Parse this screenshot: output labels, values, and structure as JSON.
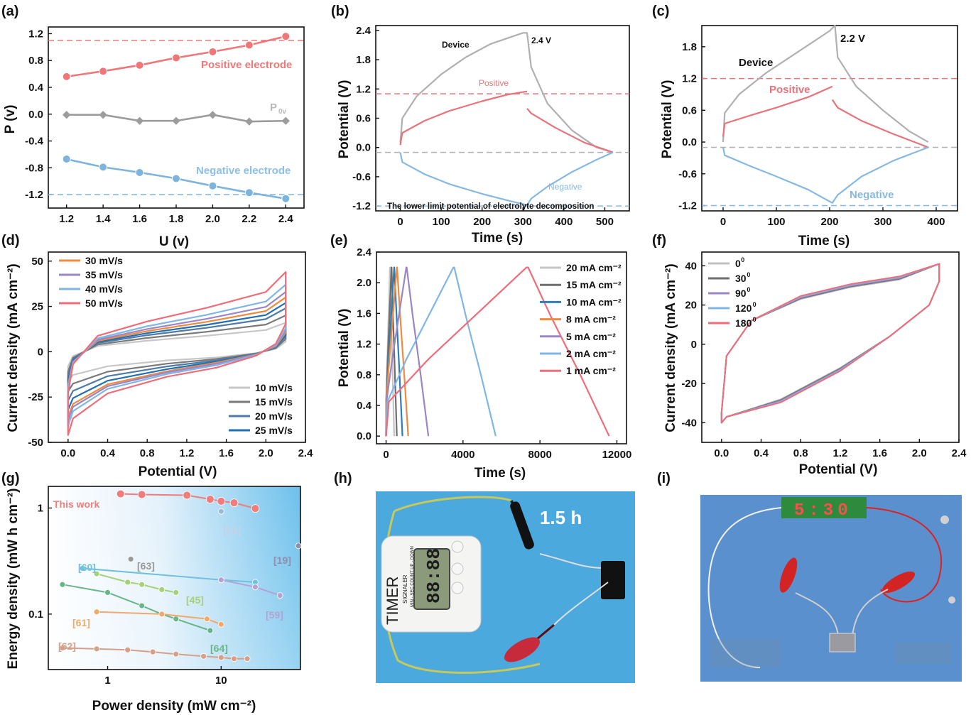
{
  "chart_data": [
    {
      "panel": "(a)",
      "type": "line",
      "xlabel": "U (v)",
      "ylabel": "P (v)",
      "xlim": [
        1.1,
        2.5
      ],
      "ylim": [
        -1.4,
        1.3
      ],
      "xticks": [
        "1.2",
        "1.4",
        "1.6",
        "1.8",
        "2.0",
        "2.2",
        "2.4"
      ],
      "yticks": [
        "-1.2",
        "-0.8",
        "-0.4",
        "0.0",
        "0.4",
        "0.8",
        "1.2"
      ],
      "x": [
        1.2,
        1.4,
        1.6,
        1.8,
        2.0,
        2.2,
        2.4
      ],
      "series": [
        {
          "name": "Positive electrode",
          "color": "#ef7777",
          "values": [
            0.56,
            0.64,
            0.73,
            0.84,
            0.93,
            1.03,
            1.16
          ]
        },
        {
          "name": "P0v",
          "color": "#9c9c9c",
          "values": [
            -0.01,
            -0.01,
            -0.1,
            -0.1,
            -0.01,
            -0.11,
            -0.1
          ]
        },
        {
          "name": "Negative electrode",
          "color": "#7cb4de",
          "values": [
            -0.67,
            -0.79,
            -0.87,
            -0.96,
            -1.07,
            -1.17,
            -1.26
          ]
        }
      ],
      "hlines": [
        {
          "y": 1.1,
          "color": "#ef7777"
        },
        {
          "y": -1.2,
          "color": "#7cb4de"
        }
      ],
      "annotations": [
        "Positive electrode",
        "P",
        "0v",
        "Negative electrode"
      ]
    },
    {
      "panel": "(b)",
      "type": "line",
      "xlabel": "Time (s)",
      "ylabel": "Potential (V)",
      "xlim": [
        -60,
        560
      ],
      "ylim": [
        -1.3,
        2.5
      ],
      "xticks": [
        "0",
        "100",
        "200",
        "300",
        "400",
        "500"
      ],
      "yticks": [
        "-1.2",
        "-0.6",
        "0.0",
        "0.6",
        "1.2",
        "1.8",
        "2.4"
      ],
      "series": [
        {
          "name": "Device",
          "color": "#b0b0b0",
          "x": [
            0,
            5,
            40,
            100,
            160,
            220,
            300,
            310,
            320,
            360,
            420,
            480,
            520
          ],
          "values": [
            0.1,
            0.6,
            1.05,
            1.5,
            1.85,
            2.12,
            2.35,
            2.35,
            1.65,
            0.9,
            0.35,
            0.0,
            -0.1
          ]
        },
        {
          "name": "Positive",
          "color": "#e8737a",
          "x": [
            0,
            5,
            60,
            120,
            200,
            260,
            310,
            310,
            320,
            380,
            450,
            520
          ],
          "values": [
            0.05,
            0.3,
            0.55,
            0.75,
            0.95,
            1.08,
            1.15,
            0.8,
            0.7,
            0.4,
            0.1,
            -0.1
          ]
        },
        {
          "name": "Negative",
          "color": "#86b9e2",
          "x": [
            0,
            5,
            60,
            120,
            200,
            260,
            310,
            320,
            360,
            420,
            480,
            520
          ],
          "values": [
            -0.1,
            -0.3,
            -0.55,
            -0.75,
            -0.95,
            -1.08,
            -1.18,
            -1.05,
            -0.8,
            -0.5,
            -0.25,
            -0.1
          ]
        }
      ],
      "hlines": [
        {
          "y": 1.1,
          "color": "#e8737a"
        },
        {
          "y": -0.1,
          "color": "#b0b0b0"
        },
        {
          "y": -1.2,
          "color": "#86b9e2"
        }
      ],
      "annotations": [
        "Device",
        "2.4 V",
        "Positive",
        "Negative",
        "The lower limit potential of electrolyte decomposition"
      ]
    },
    {
      "panel": "(c)",
      "type": "line",
      "xlabel": "Time (s)",
      "ylabel": "Potential (V)",
      "xlim": [
        -40,
        440
      ],
      "ylim": [
        -1.3,
        2.2
      ],
      "xticks": [
        "0",
        "100",
        "200",
        "300",
        "400"
      ],
      "yticks": [
        "-1.2",
        "-0.6",
        "0.0",
        "0.6",
        "1.2",
        "1.8"
      ],
      "series": [
        {
          "name": "Device",
          "color": "#b0b0b0",
          "x": [
            0,
            3,
            30,
            80,
            140,
            200,
            210,
            215,
            250,
            300,
            350,
            385
          ],
          "values": [
            0.0,
            0.55,
            0.9,
            1.3,
            1.7,
            2.1,
            2.2,
            1.6,
            1.05,
            0.6,
            0.2,
            0.0
          ]
        },
        {
          "name": "Positive",
          "color": "#e8737a",
          "x": [
            0,
            3,
            50,
            100,
            160,
            205,
            205,
            215,
            260,
            320,
            385
          ],
          "values": [
            0.1,
            0.35,
            0.5,
            0.65,
            0.85,
            1.05,
            0.8,
            0.65,
            0.4,
            0.15,
            -0.1
          ]
        },
        {
          "name": "Negative",
          "color": "#86b9e2",
          "x": [
            0,
            3,
            50,
            100,
            160,
            205,
            215,
            260,
            320,
            385
          ],
          "values": [
            -0.1,
            -0.25,
            -0.45,
            -0.65,
            -0.9,
            -1.15,
            -1.0,
            -0.65,
            -0.35,
            -0.1
          ]
        }
      ],
      "hlines": [
        {
          "y": 1.2,
          "color": "#e8737a"
        },
        {
          "y": -0.1,
          "color": "#b0b0b0"
        },
        {
          "y": -1.2,
          "color": "#86b9e2"
        }
      ],
      "annotations": [
        "Device",
        "2.2 V",
        "Positive",
        "Negative"
      ]
    },
    {
      "panel": "(d)",
      "type": "line",
      "xlabel": "Potential (V)",
      "ylabel": "Current density (mA cm⁻²)",
      "xlim": [
        -0.2,
        2.4
      ],
      "ylim": [
        -50,
        55
      ],
      "xticks": [
        "0.0",
        "0.4",
        "0.8",
        "1.2",
        "1.6",
        "2.0",
        "2.4"
      ],
      "yticks": [
        "-50",
        "-25",
        "0",
        "25",
        "50"
      ],
      "series": [
        {
          "name": "10 mV/s",
          "color": "#c7c7c7",
          "upper_end": 16,
          "lower_end": -16
        },
        {
          "name": "15 mV/s",
          "color": "#7a7a7a",
          "upper_end": 20,
          "lower_end": -22
        },
        {
          "name": "20 mV/s",
          "color": "#4d7aa6",
          "upper_end": 24,
          "lower_end": -27
        },
        {
          "name": "25 mV/s",
          "color": "#1f6fb2",
          "upper_end": 27,
          "lower_end": -32
        },
        {
          "name": "30 mV/s",
          "color": "#f08a3c",
          "upper_end": 30,
          "lower_end": -36
        },
        {
          "name": "35 mV/s",
          "color": "#9a86c4",
          "upper_end": 33,
          "lower_end": -38
        },
        {
          "name": "40 mV/s",
          "color": "#80b6e6",
          "upper_end": 37,
          "lower_end": -41
        },
        {
          "name": "50 mV/s",
          "color": "#f06c78",
          "upper_end": 44,
          "lower_end": -46
        }
      ],
      "legend_top_left": [
        "30 mV/s",
        "35 mV/s",
        "40 mV/s",
        "50 mV/s"
      ],
      "legend_bottom_right": [
        "10 mV/s",
        "15 mV/s",
        "20 mV/s",
        "25 mV/s"
      ]
    },
    {
      "panel": "(e)",
      "type": "line",
      "xlabel": "Time (s)",
      "ylabel": "Potential (V)",
      "xlim": [
        -500,
        12500
      ],
      "ylim": [
        -0.1,
        2.4
      ],
      "xticks": [
        "0",
        "4000",
        "8000",
        "12000"
      ],
      "yticks": [
        "0.0",
        "0.4",
        "0.8",
        "1.2",
        "1.6",
        "2.0",
        "2.4"
      ],
      "series": [
        {
          "name": "20 mA cm⁻²",
          "color": "#c5c5c5",
          "charge_end": 200,
          "discharge_end": 420
        },
        {
          "name": "15 mA cm⁻²",
          "color": "#6e6e6e",
          "charge_end": 280,
          "discharge_end": 560
        },
        {
          "name": "10 mA cm⁻²",
          "color": "#2f7db8",
          "charge_end": 420,
          "discharge_end": 850
        },
        {
          "name": "8 mA cm⁻²",
          "color": "#f08a3c",
          "charge_end": 560,
          "discharge_end": 1150
        },
        {
          "name": "5 mA cm⁻²",
          "color": "#9a86c4",
          "charge_end": 1050,
          "discharge_end": 2200
        },
        {
          "name": "2 mA cm⁻²",
          "color": "#80b6e6",
          "charge_end": 3500,
          "discharge_end": 5700
        },
        {
          "name": "1 mA cm⁻²",
          "color": "#f06c78",
          "charge_end": 7300,
          "discharge_end": 11600
        }
      ],
      "vmax": 2.2
    },
    {
      "panel": "(f)",
      "type": "line",
      "xlabel": "Potential (V)",
      "ylabel": "Current density (mA cm⁻²)",
      "xlim": [
        -0.2,
        2.4
      ],
      "ylim": [
        -50,
        47
      ],
      "xticks": [
        "0.0",
        "0.4",
        "0.8",
        "1.2",
        "1.6",
        "2.0",
        "2.4"
      ],
      "yticks": [
        "-40",
        "-20",
        "0",
        "20",
        "40"
      ],
      "series": [
        {
          "name": "0°",
          "label_base": "0",
          "label_sup": "0",
          "color": "#c0c0c0"
        },
        {
          "name": "30°",
          "label_base": "30",
          "label_sup": "0",
          "color": "#6e6e6e"
        },
        {
          "name": "90°",
          "label_base": "90",
          "label_sup": "0",
          "color": "#9a86c4"
        },
        {
          "name": "120°",
          "label_base": "120",
          "label_sup": "0",
          "color": "#80b6e6"
        },
        {
          "name": "180°",
          "label_base": "180",
          "label_sup": "0",
          "color": "#f06c78"
        }
      ]
    },
    {
      "panel": "(g)",
      "type": "scatter",
      "xlabel": "Power density (mW cm⁻²)",
      "ylabel": "Energy density (mW h cm⁻²)",
      "log_x": true,
      "log_y": true,
      "xticks": [
        "1",
        "10"
      ],
      "yticks": [
        "0.1",
        "1"
      ],
      "xlim": [
        0.3,
        50
      ],
      "ylim": [
        0.03,
        1.6
      ],
      "series": [
        {
          "name": "This work",
          "color": "#f07c7c",
          "x": [
            1.3,
            2.0,
            5.0,
            8.0,
            10.0,
            13.0,
            20.0
          ],
          "values": [
            1.36,
            1.34,
            1.32,
            1.21,
            1.16,
            1.12,
            0.99
          ]
        },
        {
          "name": "[65]",
          "color": "#9fb8d8",
          "x": [
            10.0
          ],
          "values": [
            0.93
          ]
        },
        {
          "name": "[19]",
          "color": "#8f8fa8",
          "x": [
            48.0
          ],
          "values": [
            0.44
          ]
        },
        {
          "name": "[63]",
          "color": "#9a9a9a",
          "x": [
            1.6
          ],
          "values": [
            0.33
          ]
        },
        {
          "name": "[60]",
          "color": "#6fc1dd",
          "x": [
            0.6,
            10.0,
            20.0
          ],
          "values": [
            0.27,
            0.21,
            0.2
          ]
        },
        {
          "name": "[59]",
          "color": "#b4a2d4",
          "x": [
            10.0,
            20.0,
            33.0
          ],
          "values": [
            0.21,
            0.18,
            0.15
          ]
        },
        {
          "name": "[45]",
          "color": "#a6d07a",
          "x": [
            0.8,
            1.5,
            2.0,
            3.0,
            4.0
          ],
          "values": [
            0.24,
            0.2,
            0.19,
            0.17,
            0.16
          ]
        },
        {
          "name": "[64]",
          "color": "#67b68a",
          "x": [
            0.4,
            1.0,
            2.0,
            3.0,
            4.0,
            8.0
          ],
          "values": [
            0.19,
            0.16,
            0.12,
            0.1,
            0.09,
            0.07
          ]
        },
        {
          "name": "[61]",
          "color": "#f0a96c",
          "x": [
            0.8,
            3.0,
            7.5,
            10.0
          ],
          "values": [
            0.105,
            0.1,
            0.09,
            0.08
          ]
        },
        {
          "name": "[62]",
          "color": "#d4a08a",
          "x": [
            0.4,
            0.8,
            1.5,
            2.5,
            4.0,
            7.0,
            10.0,
            13.0,
            17.0
          ],
          "values": [
            0.048,
            0.047,
            0.046,
            0.044,
            0.042,
            0.04,
            0.039,
            0.038,
            0.038
          ]
        }
      ]
    }
  ],
  "panel_labels": [
    "(a)",
    "(b)",
    "(c)",
    "(d)",
    "(e)",
    "(f)",
    "(g)",
    "(h)",
    "(i)"
  ],
  "photo_h": {
    "overlay_text": "1.5 h",
    "timer_text": "TIMER",
    "display_digits": "88:88",
    "brand_text": "SIGNALER",
    "mode_text": "MIN - SEC COUNT UP - DOWN"
  },
  "photo_i": {
    "display_text": "5:30"
  }
}
